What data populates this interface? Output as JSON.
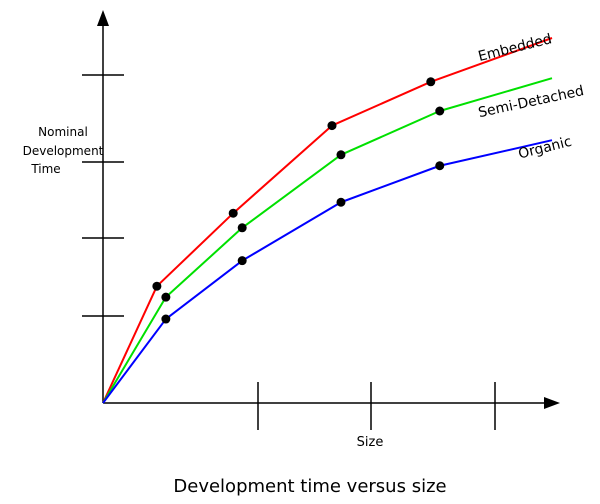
{
  "chart_data": {
    "type": "line",
    "title": "Development time versus size",
    "xlabel": "Size",
    "ylabel": "Nominal Development Time",
    "ylabel_lines": [
      "Nominal",
      "Development",
      "Time"
    ],
    "xlim": [
      0,
      100
    ],
    "ylim": [
      0,
      100
    ],
    "x_ticks_count": 3,
    "y_ticks_count": 4,
    "tick_labels_shown": false,
    "grid": false,
    "legend": "inline labels at line ends",
    "series": [
      {
        "name": "Embedded",
        "color": "#ff0000",
        "x": [
          0,
          12,
          29,
          51,
          73,
          100
        ],
        "y": [
          0,
          32,
          52,
          76,
          88,
          100
        ],
        "markers_at": [
          1,
          2,
          3,
          4
        ]
      },
      {
        "name": "Semi-Detached",
        "color": "#00e000",
        "x": [
          0,
          14,
          31,
          53,
          75,
          100
        ],
        "y": [
          0,
          29,
          48,
          68,
          80,
          89
        ],
        "markers_at": [
          1,
          2,
          3,
          4
        ]
      },
      {
        "name": "Organic",
        "color": "#0000ff",
        "x": [
          0,
          14,
          31,
          53,
          75,
          100
        ],
        "y": [
          0,
          23,
          39,
          55,
          65,
          72
        ],
        "markers_at": [
          1,
          2,
          3,
          4
        ]
      }
    ]
  }
}
